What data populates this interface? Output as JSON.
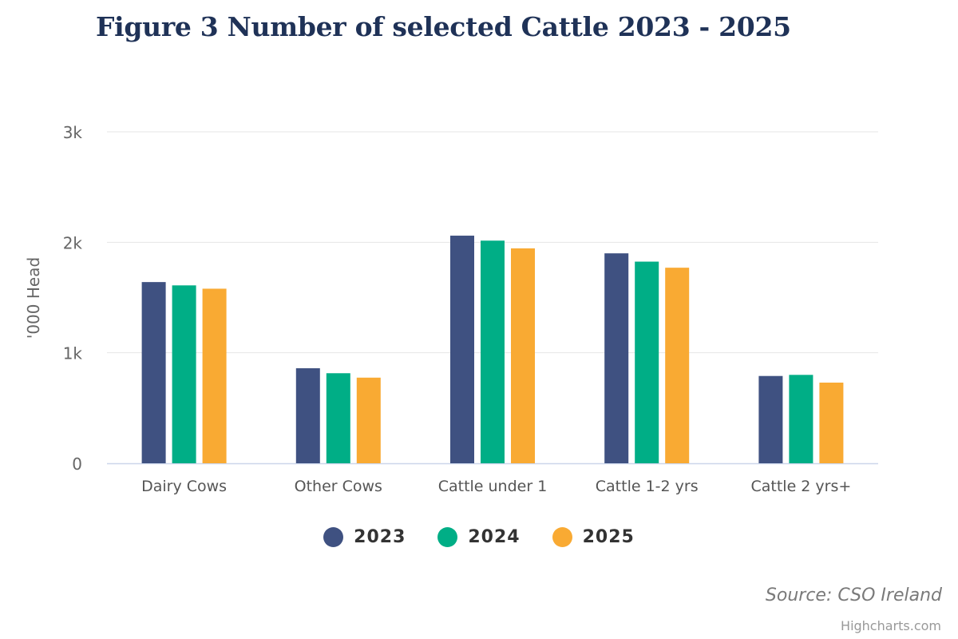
{
  "title": "Figure 3 Number of selected Cattle 2023 - 2025",
  "source": "Source: CSO Ireland",
  "credits": "Highcharts.com",
  "chart_data": {
    "type": "bar",
    "title": "Figure 3 Number of selected Cattle 2023 - 2025",
    "xlabel": "",
    "ylabel": "'000 Head",
    "categories": [
      "Dairy Cows",
      "Other Cows",
      "Cattle under 1",
      "Cattle 1-2 yrs",
      "Cattle 2 yrs+"
    ],
    "series": [
      {
        "name": "2023",
        "color": "#3f5181",
        "values": [
          1640,
          860,
          2060,
          1900,
          790
        ]
      },
      {
        "name": "2024",
        "color": "#00ae86",
        "values": [
          1610,
          815,
          2015,
          1825,
          800
        ]
      },
      {
        "name": "2025",
        "color": "#f9aa33",
        "values": [
          1580,
          775,
          1945,
          1770,
          730
        ]
      }
    ],
    "ylim": [
      0,
      3000
    ],
    "yticks": [
      {
        "value": 0,
        "label": "0"
      },
      {
        "value": 1000,
        "label": "1k"
      },
      {
        "value": 2000,
        "label": "2k"
      },
      {
        "value": 3000,
        "label": "3k"
      }
    ],
    "grid": true,
    "legend": "bottom-center"
  }
}
